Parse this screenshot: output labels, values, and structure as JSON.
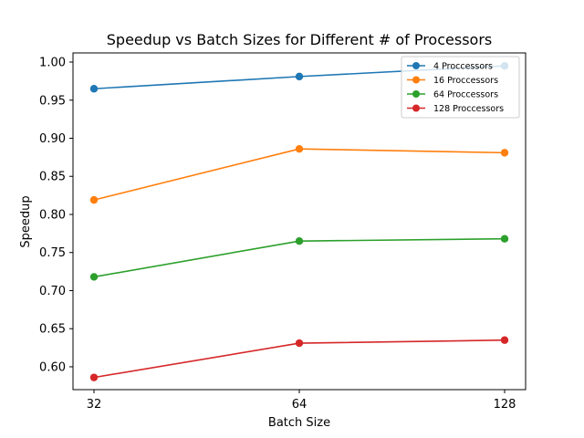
{
  "chart_data": {
    "type": "line",
    "title": "Speedup vs Batch Sizes for Different # of Processors",
    "xlabel": "Batch Size",
    "ylabel": "Speedup",
    "x": [
      "32",
      "64",
      "128"
    ],
    "x_scale": "categorical",
    "ylim": [
      0.57,
      1.012
    ],
    "yticks": [
      "0.60",
      "0.65",
      "0.70",
      "0.75",
      "0.80",
      "0.85",
      "0.90",
      "0.95",
      "1.00"
    ],
    "grid": false,
    "legend_position": "top-right",
    "series": [
      {
        "name": "4 Proccessors",
        "color": "#1f77b4",
        "values": [
          0.965,
          0.981,
          0.995
        ]
      },
      {
        "name": "16 Proccessors",
        "color": "#ff7f0e",
        "values": [
          0.819,
          0.886,
          0.881
        ]
      },
      {
        "name": "64 Proccessors",
        "color": "#2ca02c",
        "values": [
          0.718,
          0.765,
          0.768
        ]
      },
      {
        "name": "128 Proccessors",
        "color": "#d62728",
        "values": [
          0.586,
          0.631,
          0.635
        ]
      }
    ]
  }
}
